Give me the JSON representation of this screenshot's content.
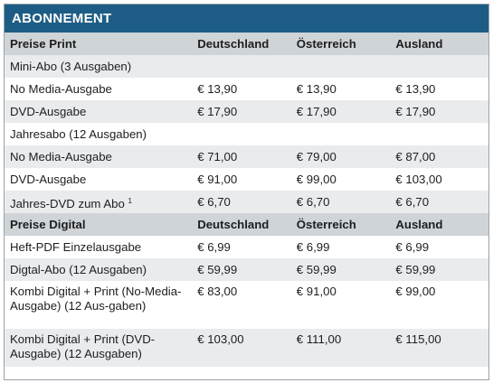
{
  "title": "ABONNEMENT",
  "columns": [
    "Deutschland",
    "Österreich",
    "Ausland"
  ],
  "print": {
    "header": "Preise Print",
    "rows": [
      {
        "label": "Mini-Abo (3 Ausgaben)",
        "de": "",
        "at": "",
        "int": ""
      },
      {
        "label": "No Media-Ausgabe",
        "de": "€ 13,90",
        "at": "€ 13,90",
        "int": "€ 13,90"
      },
      {
        "label": "DVD-Ausgabe",
        "de": "€ 17,90",
        "at": "€ 17,90",
        "int": "€ 17,90"
      },
      {
        "label": "Jahresabo (12 Ausgaben)",
        "de": "",
        "at": "",
        "int": ""
      },
      {
        "label": "No Media-Ausgabe",
        "de": "€ 71,00",
        "at": "€ 79,00",
        "int": "€ 87,00"
      },
      {
        "label": "DVD-Ausgabe",
        "de": "€ 91,00",
        "at": "€ 99,00",
        "int": "€ 103,00"
      },
      {
        "label": "Jahres-DVD zum Abo",
        "footnote": "1",
        "de": "€ 6,70",
        "at": "€ 6,70",
        "int": "€ 6,70"
      }
    ]
  },
  "digital": {
    "header": "Preise Digital",
    "rows": [
      {
        "label": "Heft-PDF Einzelausgabe",
        "de": "€ 6,99",
        "at": "€ 6,99",
        "int": "€ 6,99"
      },
      {
        "label": "Digtal-Abo (12 Ausgaben)",
        "de": "€ 59,99",
        "at": "€ 59,99",
        "int": "€ 59,99"
      },
      {
        "label": "Kombi Digital + Print (No-Media-Ausgabe) (12 Aus-gaben)",
        "de": "€ 83,00",
        "at": "€ 91,00",
        "int": "€ 99,00"
      },
      {
        "label": "Kombi Digital + Print (DVD-Ausgabe) (12 Ausgaben)",
        "de": "€ 103,00",
        "at": "€ 111,00",
        "int": "€ 115,00"
      }
    ]
  }
}
